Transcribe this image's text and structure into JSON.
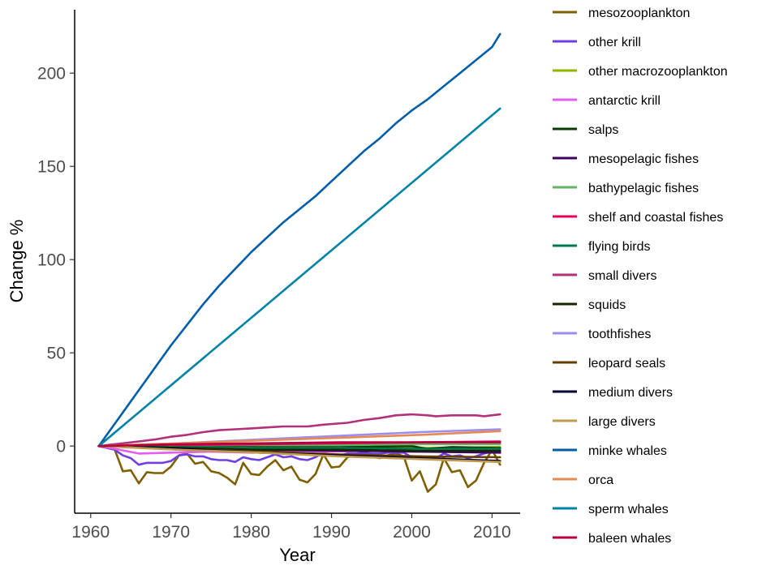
{
  "chart_data": {
    "type": "line",
    "title": "",
    "xlabel": "Year",
    "ylabel": "Change %",
    "xlim": [
      1958.0,
      2013.5
    ],
    "ylim": [
      -36,
      234
    ],
    "xticks": [
      1960,
      1970,
      1980,
      1990,
      2000,
      2010
    ],
    "yticks": [
      0,
      50,
      100,
      150,
      200
    ],
    "grid": false,
    "legend_position": "right",
    "series": [
      {
        "name": "mesozooplankton",
        "color": "#7f6000",
        "points": [
          [
            1961,
            0
          ],
          [
            1962,
            0
          ],
          [
            1963,
            -2
          ],
          [
            1964,
            -13.5
          ],
          [
            1965,
            -13
          ],
          [
            1966,
            -20
          ],
          [
            1967,
            -14
          ],
          [
            1968,
            -14.5
          ],
          [
            1969,
            -14.5
          ],
          [
            1970,
            -11
          ],
          [
            1971,
            -5
          ],
          [
            1972,
            -4
          ],
          [
            1973,
            -9.5
          ],
          [
            1974,
            -8.5
          ],
          [
            1975,
            -13.5
          ],
          [
            1976,
            -14.5
          ],
          [
            1977,
            -17
          ],
          [
            1978,
            -20.5
          ],
          [
            1979,
            -9
          ],
          [
            1980,
            -15
          ],
          [
            1981,
            -15.5
          ],
          [
            1982,
            -11
          ],
          [
            1983,
            -7.5
          ],
          [
            1984,
            -13
          ],
          [
            1985,
            -11
          ],
          [
            1986,
            -18
          ],
          [
            1987,
            -19.5
          ],
          [
            1988,
            -15
          ],
          [
            1989,
            -4.5
          ],
          [
            1990,
            -11.5
          ],
          [
            1991,
            -11
          ],
          [
            1992,
            -6
          ],
          [
            1993,
            -5
          ],
          [
            1994,
            -4
          ],
          [
            1995,
            -5.5
          ],
          [
            1996,
            -6.5
          ],
          [
            1997,
            -5
          ],
          [
            1998,
            -4
          ],
          [
            1999,
            -5.5
          ],
          [
            2000,
            -18.5
          ],
          [
            2001,
            -13.5
          ],
          [
            2002,
            -24.5
          ],
          [
            2003,
            -20.5
          ],
          [
            2004,
            -6.5
          ],
          [
            2005,
            -14
          ],
          [
            2006,
            -13
          ],
          [
            2007,
            -22
          ],
          [
            2008,
            -18.5
          ],
          [
            2009,
            -9
          ],
          [
            2010,
            -2
          ],
          [
            2011,
            -10
          ]
        ]
      },
      {
        "name": "other krill",
        "color": "#6f3fe0",
        "points": [
          [
            1961,
            0
          ],
          [
            1962,
            -1
          ],
          [
            1963,
            -2
          ],
          [
            1964,
            -5
          ],
          [
            1965,
            -6.5
          ],
          [
            1966,
            -10
          ],
          [
            1967,
            -9
          ],
          [
            1968,
            -9
          ],
          [
            1969,
            -9
          ],
          [
            1970,
            -8
          ],
          [
            1971,
            -5
          ],
          [
            1972,
            -4.5
          ],
          [
            1973,
            -5.5
          ],
          [
            1974,
            -5.5
          ],
          [
            1975,
            -7
          ],
          [
            1976,
            -7.5
          ],
          [
            1977,
            -7.5
          ],
          [
            1978,
            -8.5
          ],
          [
            1979,
            -6
          ],
          [
            1980,
            -7
          ],
          [
            1981,
            -7.5
          ],
          [
            1982,
            -6
          ],
          [
            1983,
            -4.5
          ],
          [
            1984,
            -6
          ],
          [
            1985,
            -5.5
          ],
          [
            1986,
            -7
          ],
          [
            1987,
            -7.5
          ],
          [
            1988,
            -6
          ],
          [
            1989,
            -3.5
          ],
          [
            1990,
            -5
          ],
          [
            1991,
            -5
          ],
          [
            1992,
            -4
          ],
          [
            1993,
            -4
          ],
          [
            1994,
            -3.5
          ],
          [
            1995,
            -4
          ],
          [
            1996,
            -4
          ],
          [
            1997,
            -3.5
          ],
          [
            1998,
            -3.5
          ],
          [
            1999,
            -3.5
          ],
          [
            2000,
            -6
          ],
          [
            2001,
            -5.5
          ],
          [
            2002,
            -7
          ],
          [
            2003,
            -6.5
          ],
          [
            2004,
            -4
          ],
          [
            2005,
            -5.5
          ],
          [
            2006,
            -5
          ],
          [
            2007,
            -6.5
          ],
          [
            2008,
            -5.5
          ],
          [
            2009,
            -4
          ],
          [
            2010,
            -3
          ],
          [
            2011,
            -3.5
          ]
        ]
      },
      {
        "name": "other macrozooplankton",
        "color": "#8db600",
        "points": [
          [
            1961,
            0
          ],
          [
            1971,
            -0.5
          ],
          [
            1981,
            -0.5
          ],
          [
            1991,
            -1
          ],
          [
            2001,
            -1
          ],
          [
            2011,
            -0.5
          ]
        ]
      },
      {
        "name": "antarctic krill",
        "color": "#e55cf0",
        "points": [
          [
            1961,
            0
          ],
          [
            1963,
            -1.5
          ],
          [
            1966,
            -4
          ],
          [
            1970,
            -3.5
          ],
          [
            1975,
            -3
          ],
          [
            1980,
            -3.5
          ],
          [
            1985,
            -3
          ],
          [
            1990,
            -3
          ],
          [
            1995,
            -2.5
          ],
          [
            2000,
            -3
          ],
          [
            2005,
            -3
          ],
          [
            2011,
            -2.5
          ]
        ]
      },
      {
        "name": "salps",
        "color": "#0b3d00",
        "points": [
          [
            1961,
            0
          ],
          [
            1971,
            0
          ],
          [
            1981,
            -0.5
          ],
          [
            1991,
            -0.5
          ],
          [
            2000,
            0
          ],
          [
            2002,
            -1.5
          ],
          [
            2005,
            -0.5
          ],
          [
            2011,
            -1
          ]
        ]
      },
      {
        "name": "mesopelagic fishes",
        "color": "#3d0066",
        "points": [
          [
            1961,
            0
          ],
          [
            1971,
            -1
          ],
          [
            1981,
            -2
          ],
          [
            1991,
            -2.5
          ],
          [
            2001,
            -3
          ],
          [
            2011,
            -3.5
          ]
        ]
      },
      {
        "name": "bathypelagic fishes",
        "color": "#66b366",
        "points": [
          [
            1961,
            0
          ],
          [
            1971,
            0.5
          ],
          [
            1981,
            0.5
          ],
          [
            1991,
            0.5
          ],
          [
            2001,
            1
          ],
          [
            2011,
            1
          ]
        ]
      },
      {
        "name": "shelf and coastal fishes",
        "color": "#e6005c",
        "points": [
          [
            1961,
            0
          ],
          [
            1971,
            0.5
          ],
          [
            1981,
            1
          ],
          [
            1991,
            1.5
          ],
          [
            2001,
            2
          ],
          [
            2011,
            2.5
          ]
        ]
      },
      {
        "name": "flying birds",
        "color": "#007a4d",
        "points": [
          [
            1961,
            0
          ],
          [
            1971,
            -0.5
          ],
          [
            1981,
            -1
          ],
          [
            1991,
            -1
          ],
          [
            2001,
            -1.5
          ],
          [
            2011,
            -1.5
          ]
        ]
      },
      {
        "name": "small divers",
        "color": "#b3307a",
        "points": [
          [
            1961,
            0
          ],
          [
            1963,
            1
          ],
          [
            1966,
            2.5
          ],
          [
            1968,
            3.5
          ],
          [
            1970,
            5
          ],
          [
            1972,
            6
          ],
          [
            1974,
            7.5
          ],
          [
            1976,
            8.5
          ],
          [
            1978,
            9
          ],
          [
            1980,
            9.5
          ],
          [
            1982,
            10
          ],
          [
            1984,
            10.5
          ],
          [
            1987,
            10.5
          ],
          [
            1989,
            11.5
          ],
          [
            1992,
            12.5
          ],
          [
            1994,
            14
          ],
          [
            1996,
            15
          ],
          [
            1998,
            16.5
          ],
          [
            2000,
            17
          ],
          [
            2002,
            16.5
          ],
          [
            2003,
            16
          ],
          [
            2005,
            16.5
          ],
          [
            2008,
            16.5
          ],
          [
            2009,
            16
          ],
          [
            2011,
            17
          ]
        ]
      },
      {
        "name": "squids",
        "color": "#142600",
        "points": [
          [
            1961,
            0
          ],
          [
            1971,
            -1
          ],
          [
            1981,
            -2
          ],
          [
            1991,
            -2
          ],
          [
            2001,
            -2.5
          ],
          [
            2011,
            -2.5
          ]
        ]
      },
      {
        "name": "toothfishes",
        "color": "#9a8cf0",
        "points": [
          [
            1961,
            0
          ],
          [
            1971,
            1.5
          ],
          [
            1981,
            3.5
          ],
          [
            1991,
            5.5
          ],
          [
            2001,
            7.5
          ],
          [
            2011,
            9
          ]
        ]
      },
      {
        "name": "leopard seals",
        "color": "#663d00",
        "points": [
          [
            1961,
            0
          ],
          [
            1971,
            -1.5
          ],
          [
            1981,
            -3
          ],
          [
            1991,
            -4.5
          ],
          [
            2001,
            -5.5
          ],
          [
            2011,
            -6
          ]
        ]
      },
      {
        "name": "medium divers",
        "color": "#000033",
        "points": [
          [
            1961,
            0
          ],
          [
            1971,
            -1.5
          ],
          [
            1981,
            -3.5
          ],
          [
            1991,
            -5
          ],
          [
            2001,
            -6.5
          ],
          [
            2011,
            -8
          ]
        ]
      },
      {
        "name": "large divers",
        "color": "#c09a4d",
        "points": [
          [
            1961,
            0
          ],
          [
            1971,
            -2
          ],
          [
            1981,
            -3.5
          ],
          [
            1991,
            -5.5
          ],
          [
            2001,
            -7
          ],
          [
            2011,
            -8.5
          ]
        ]
      },
      {
        "name": "minke whales",
        "color": "#005ea8",
        "points": [
          [
            1961,
            0
          ],
          [
            1964,
            18
          ],
          [
            1966,
            30
          ],
          [
            1968,
            42
          ],
          [
            1970,
            54
          ],
          [
            1972,
            65
          ],
          [
            1974,
            76
          ],
          [
            1976,
            86
          ],
          [
            1978,
            95
          ],
          [
            1980,
            104
          ],
          [
            1982,
            112
          ],
          [
            1984,
            120
          ],
          [
            1986,
            127
          ],
          [
            1988,
            134
          ],
          [
            1990,
            142
          ],
          [
            1992,
            150
          ],
          [
            1994,
            158
          ],
          [
            1996,
            165
          ],
          [
            1998,
            173
          ],
          [
            2000,
            180
          ],
          [
            2002,
            186
          ],
          [
            2004,
            193
          ],
          [
            2006,
            200
          ],
          [
            2008,
            207
          ],
          [
            2010,
            214
          ],
          [
            2011,
            221
          ]
        ]
      },
      {
        "name": "orca",
        "color": "#e58a52",
        "points": [
          [
            1961,
            0
          ],
          [
            1971,
            1.5
          ],
          [
            1981,
            3
          ],
          [
            1991,
            4.5
          ],
          [
            2001,
            6
          ],
          [
            2011,
            8
          ]
        ]
      },
      {
        "name": "sperm whales",
        "color": "#0083a6",
        "points": [
          [
            1961,
            0
          ],
          [
            2011,
            181
          ]
        ]
      },
      {
        "name": "baleen whales",
        "color": "#b3003c",
        "points": [
          [
            1961,
            0
          ],
          [
            1971,
            1
          ],
          [
            1981,
            1.5
          ],
          [
            1991,
            2
          ],
          [
            2001,
            2
          ],
          [
            2011,
            2
          ]
        ]
      }
    ]
  }
}
